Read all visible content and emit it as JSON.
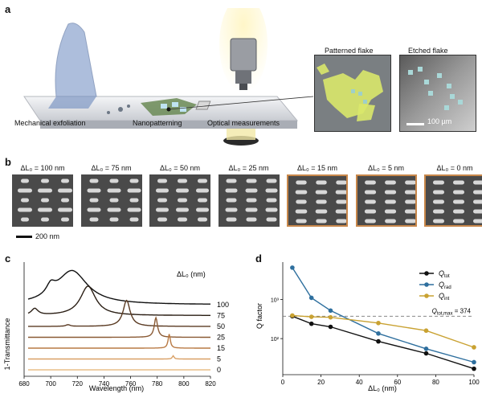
{
  "panels": {
    "a": "a",
    "b": "b",
    "c": "c",
    "d": "d"
  },
  "panel_a": {
    "steps": [
      "Mechanical exfoliation",
      "Nanopatterning",
      "Optical measurements"
    ],
    "patterned_title": "Patterned flake",
    "etched_title": "Etched flake",
    "scalebar_label": "100 µm"
  },
  "panel_b": {
    "titles": [
      "ΔL₀ = 100 nm",
      "ΔL₀ = 75 nm",
      "ΔL₀ = 50 nm",
      "ΔL₀ = 25 nm",
      "ΔL₀ = 15 nm",
      "ΔL₀ = 5 nm",
      "ΔL₀ = 0 nm"
    ],
    "offsets": [
      100,
      75,
      50,
      25,
      15,
      5,
      0
    ],
    "outlined": [
      false,
      false,
      false,
      false,
      true,
      true,
      true
    ],
    "scalebar_label": "200 nm"
  },
  "chart_data": [
    {
      "type": "line",
      "panel": "c",
      "xlabel": "Wavelength (nm)",
      "ylabel": "1-Transmittance",
      "xlim": [
        680,
        820
      ],
      "xticks": [
        680,
        700,
        720,
        740,
        760,
        780,
        800,
        820
      ],
      "legend_title": "ΔL₀ (nm)",
      "series": [
        {
          "name": "100",
          "color": "#111111",
          "baseline": 6,
          "peaks": [
            [
              700,
              0.9,
              4
            ],
            [
              716,
              3.1,
              14
            ]
          ]
        },
        {
          "name": "75",
          "color": "#2a1e14",
          "baseline": 5,
          "peaks": [
            [
              688,
              0.6,
              3
            ],
            [
              728,
              2.7,
              7
            ]
          ]
        },
        {
          "name": "50",
          "color": "#5a3a22",
          "baseline": 4,
          "peaks": [
            [
              713,
              0.15,
              2
            ],
            [
              757,
              2.4,
              3.2
            ]
          ]
        },
        {
          "name": "25",
          "color": "#8a5a34",
          "baseline": 3,
          "peaks": [
            [
              779,
              1.8,
              1.5
            ]
          ]
        },
        {
          "name": "15",
          "color": "#b97a44",
          "baseline": 2,
          "peaks": [
            [
              789,
              1.3,
              1.0
            ]
          ]
        },
        {
          "name": "5",
          "color": "#d9a065",
          "baseline": 1,
          "peaks": [
            [
              792,
              0.3,
              0.8
            ]
          ]
        },
        {
          "name": "0",
          "color": "#e8bf88",
          "baseline": 0,
          "peaks": []
        }
      ]
    },
    {
      "type": "line",
      "panel": "d",
      "xlabel": "ΔL₀ (nm)",
      "ylabel": "Q factor",
      "xlim": [
        0,
        100
      ],
      "xticks": [
        0,
        20,
        40,
        60,
        80,
        100
      ],
      "ylog": true,
      "yticks": [
        "10²",
        "10³"
      ],
      "annotation": "Q_tot,max = 374",
      "annotation_value": 374,
      "series": [
        {
          "name": "Q_tot",
          "color": "#111111",
          "x": [
            5,
            15,
            25,
            50,
            75,
            100
          ],
          "y": [
            374,
            240,
            200,
            85,
            42,
            17
          ]
        },
        {
          "name": "Q_rad",
          "color": "#2e6f9e",
          "x": [
            5,
            15,
            25,
            50,
            75,
            100
          ],
          "y": [
            6500,
            1100,
            520,
            135,
            55,
            25
          ]
        },
        {
          "name": "Q_int",
          "color": "#c9a232",
          "x": [
            5,
            15,
            25,
            50,
            75,
            100
          ],
          "y": [
            390,
            360,
            350,
            250,
            160,
            60
          ]
        }
      ],
      "legend": [
        {
          "label": "Q",
          "sub": "tot"
        },
        {
          "label": "Q",
          "sub": "rad"
        },
        {
          "label": "Q",
          "sub": "int"
        }
      ],
      "annotation_parts": {
        "q": "Q",
        "sub": "tot,max",
        "rest": " = 374"
      }
    }
  ]
}
